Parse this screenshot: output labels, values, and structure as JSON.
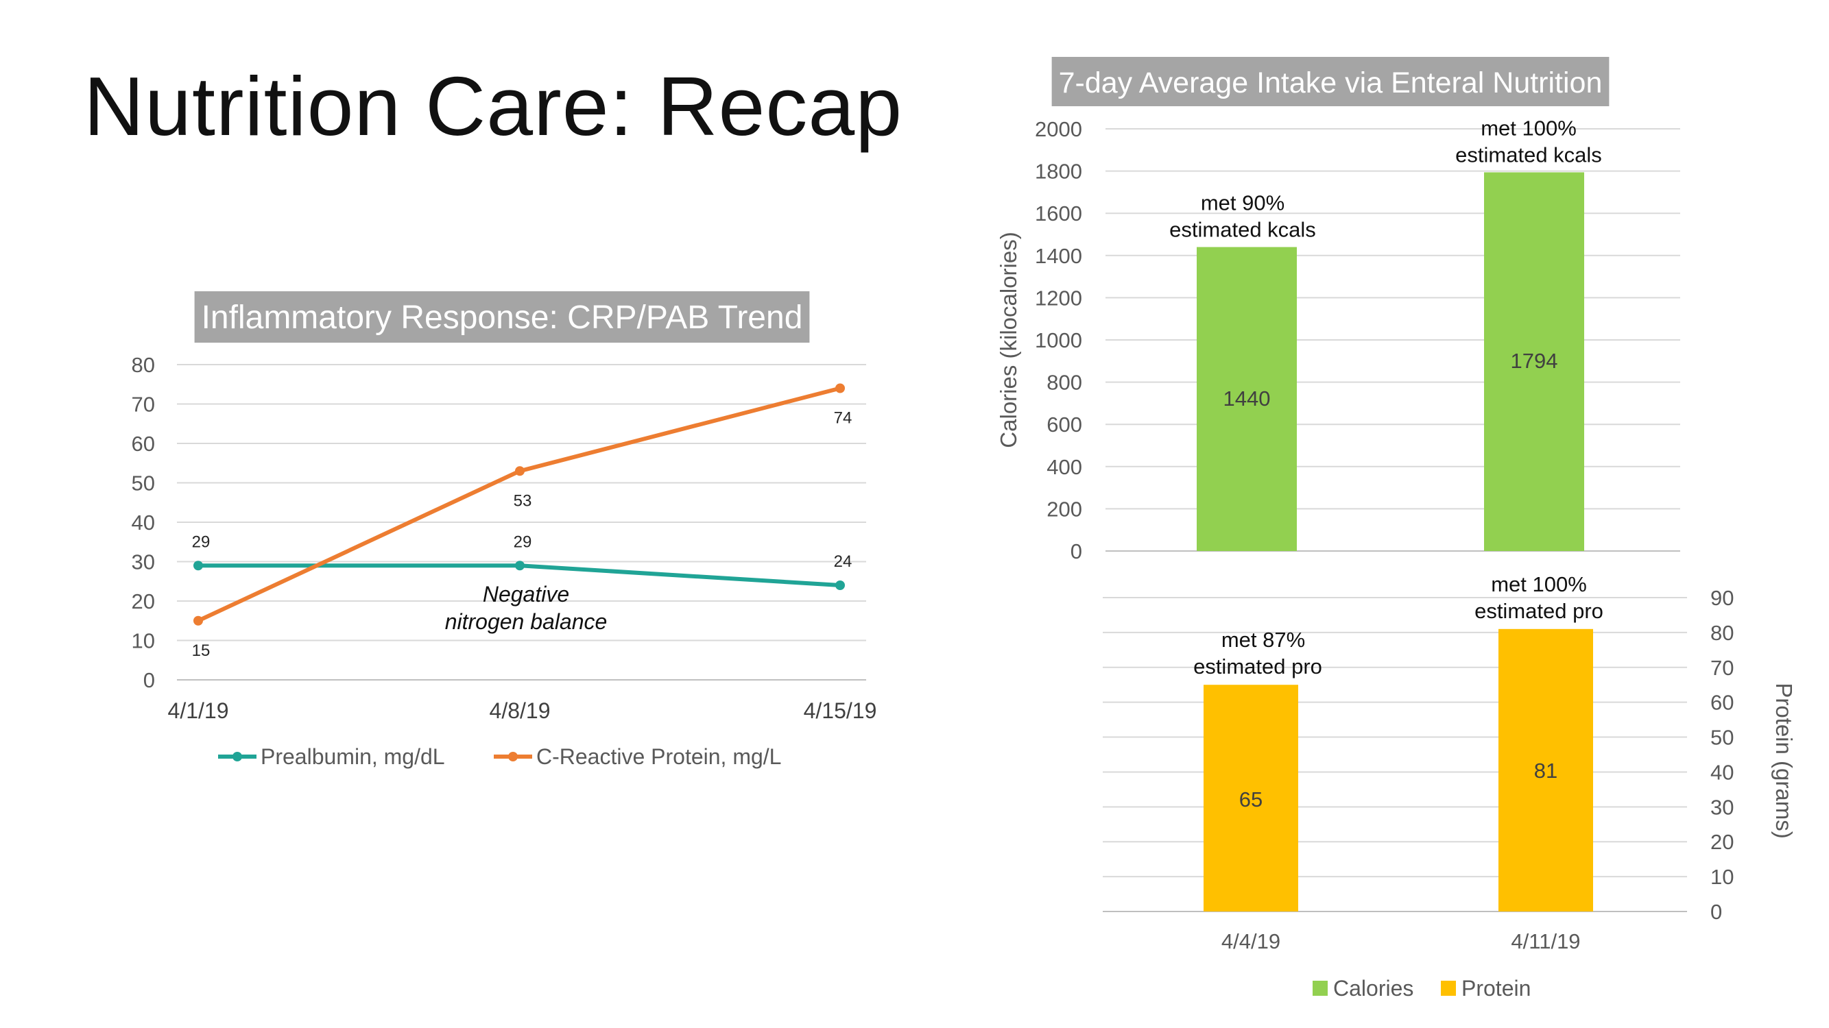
{
  "slide": {
    "title": "Nutrition Care: Recap"
  },
  "chart_data": [
    {
      "type": "line",
      "title": "Inflammatory Response: CRP/PAB Trend",
      "categories": [
        "4/1/19",
        "4/8/19",
        "4/15/19"
      ],
      "ylim": [
        0,
        80
      ],
      "yticks": [
        0,
        10,
        20,
        30,
        40,
        50,
        60,
        70,
        80
      ],
      "grid": true,
      "legend_position": "bottom",
      "series": [
        {
          "name": "Prealbumin, mg/dL",
          "values": [
            29,
            29,
            24
          ],
          "color": "#20A496"
        },
        {
          "name": "C-Reactive Protein, mg/L",
          "values": [
            15,
            53,
            74
          ],
          "color": "#ED7D31"
        }
      ],
      "annotation": [
        "Negative",
        "nitrogen balance"
      ]
    },
    {
      "type": "bar",
      "title": "7-day Average Intake via Enteral Nutrition",
      "categories": [
        "4/4/19",
        "4/11/19"
      ],
      "grid": true,
      "legend_position": "bottom",
      "legend": [
        {
          "name": "Calories",
          "color": "#92D050"
        },
        {
          "name": "Protein",
          "color": "#FFC000"
        }
      ],
      "calories": {
        "name": "Calories",
        "ylabel": "Calories (kilocalories)",
        "ylim": [
          0,
          2000
        ],
        "yticks": [
          0,
          200,
          400,
          600,
          800,
          1000,
          1200,
          1400,
          1600,
          1800,
          2000
        ],
        "values": [
          1440,
          1794
        ],
        "color": "#92D050",
        "notes": [
          [
            "met 90%",
            "estimated kcals"
          ],
          [
            "met 100%",
            "estimated kcals"
          ]
        ]
      },
      "protein": {
        "name": "Protein",
        "ylabel": "Protein (grams)",
        "ylim": [
          0,
          90
        ],
        "yticks": [
          0,
          10,
          20,
          30,
          40,
          50,
          60,
          70,
          80,
          90
        ],
        "values": [
          65,
          81
        ],
        "color": "#FFC000",
        "notes": [
          [
            "met 87%",
            "estimated pro"
          ],
          [
            "met 100%",
            "estimated pro"
          ]
        ]
      }
    }
  ]
}
